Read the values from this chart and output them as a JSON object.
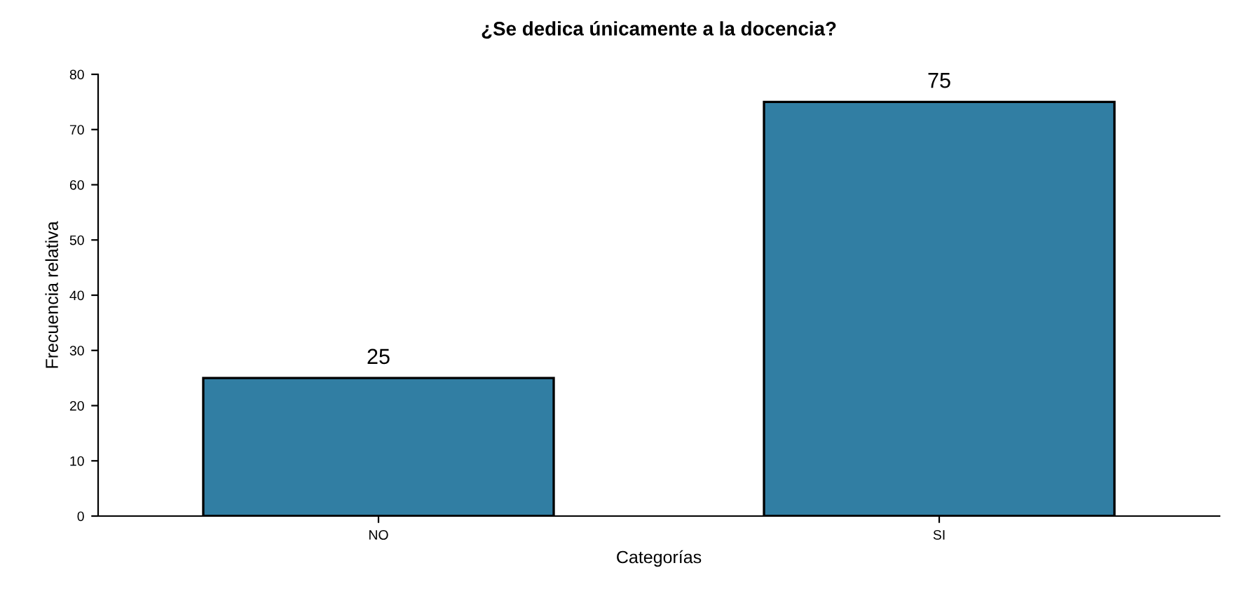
{
  "chart_data": {
    "type": "bar",
    "title": "¿Se dedica únicamente a la docencia?",
    "xlabel": "Categorías",
    "ylabel": "Frecuencia relativa",
    "categories": [
      "NO",
      "SI"
    ],
    "values": [
      25,
      75
    ],
    "color": "#317ea3",
    "ylim": [
      0,
      80
    ],
    "yticks": [
      0,
      10,
      20,
      30,
      40,
      50,
      60,
      70,
      80
    ],
    "grid": false,
    "data_labels": true
  }
}
